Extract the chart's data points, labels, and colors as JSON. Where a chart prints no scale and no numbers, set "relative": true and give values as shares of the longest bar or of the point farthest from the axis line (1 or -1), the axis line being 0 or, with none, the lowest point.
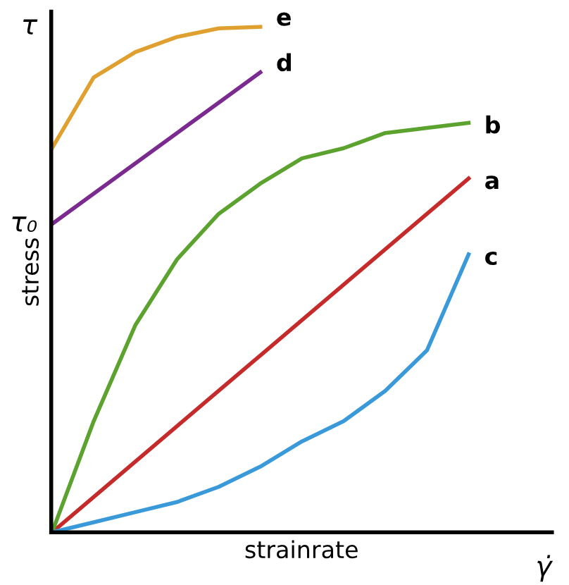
{
  "chart_data": {
    "type": "line",
    "relative": true,
    "xlabel": "strainrate",
    "ylabel": "stress",
    "categories": [
      null,
      null,
      null,
      null,
      null,
      null,
      null,
      null,
      null,
      null,
      null
    ],
    "series": [
      {
        "name": "a",
        "color": "#c62b2b",
        "values": [
          0,
          0.07,
          0.14,
          0.21,
          0.28,
          0.35,
          0.42,
          0.49,
          0.56,
          0.63,
          0.7
        ]
      },
      {
        "name": "b",
        "color": "#5ba22e",
        "values": [
          0,
          0.22,
          0.41,
          0.54,
          0.63,
          0.69,
          0.74,
          0.76,
          0.79,
          0.8,
          0.81
        ]
      },
      {
        "name": "c",
        "color": "#3a9ad9",
        "values": [
          0,
          0.02,
          0.04,
          0.06,
          0.09,
          0.13,
          0.18,
          0.22,
          0.28,
          0.36,
          0.55
        ]
      },
      {
        "name": "d",
        "color": "#7b2a8f",
        "values": [
          0.61,
          0.67,
          0.73,
          0.79,
          0.85,
          0.91,
          null,
          null,
          null,
          null,
          null
        ]
      },
      {
        "name": "e",
        "color": "#e0a030",
        "values": [
          0.76,
          0.9,
          0.95,
          0.98,
          0.997,
          1.0,
          null,
          null,
          null,
          null,
          null
        ]
      }
    ],
    "annotations": [
      "τ",
      "γ̇",
      "τ₀"
    ],
    "legend": false,
    "marker": "none",
    "line_style": "solid"
  }
}
